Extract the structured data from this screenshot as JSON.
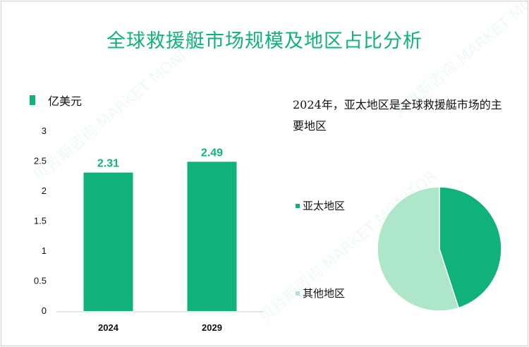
{
  "title": "全球救援艇市场规模及地区占比分析",
  "colors": {
    "primary": "#10b27a",
    "secondary": "#ade6c8"
  },
  "chart_data": [
    {
      "type": "bar",
      "unit": "亿美元",
      "categories": [
        "2024",
        "2029"
      ],
      "values": [
        2.31,
        2.49
      ],
      "data_labels": [
        "2.31",
        "2.49"
      ],
      "ylim": [
        0,
        3
      ],
      "yticks": [
        "0",
        "0.5",
        "1",
        "1.5",
        "2",
        "2.5",
        "3"
      ],
      "grid": false
    },
    {
      "type": "pie",
      "note": "2024年，亚太地区是全球救援艇市场的主要地区",
      "slices": [
        {
          "label": "亚太地区",
          "value": 45,
          "color": "#10b27a"
        },
        {
          "label": "其他地区",
          "value": 55,
          "color": "#ade6c8"
        }
      ]
    }
  ]
}
